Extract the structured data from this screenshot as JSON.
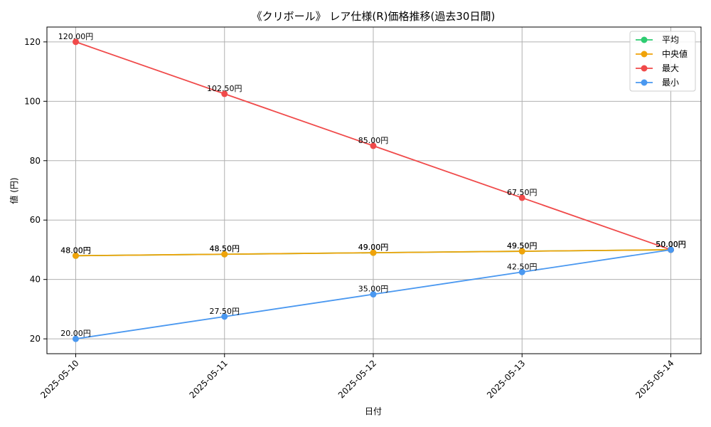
{
  "chart_data": {
    "type": "line",
    "title": "《クリボール》 レア仕様(R)価格推移(過去30日間)",
    "xlabel": "日付",
    "ylabel": "値 (円)",
    "categories": [
      "2025-05-10",
      "2025-05-11",
      "2025-05-12",
      "2025-05-13",
      "2025-05-14"
    ],
    "ylim": [
      15,
      125
    ],
    "yticks": [
      20,
      40,
      60,
      80,
      100,
      120
    ],
    "grid": true,
    "legend_position": "top-right",
    "series": [
      {
        "name": "平均",
        "color": "#2ecc71",
        "values": [
          48.0,
          48.5,
          49.0,
          49.5,
          50.0
        ],
        "labels": [
          "48.00円",
          "48.50円",
          "49.00円",
          "49.50円",
          "50.00円"
        ]
      },
      {
        "name": "中央値",
        "color": "#f0a30a",
        "values": [
          48.0,
          48.5,
          49.0,
          49.5,
          50.0
        ],
        "labels": [
          "48.00円",
          "48.50円",
          "49.00円",
          "49.50円",
          "50.00円"
        ]
      },
      {
        "name": "最大",
        "color": "#f04a4a",
        "values": [
          120.0,
          102.5,
          85.0,
          67.5,
          50.0
        ],
        "labels": [
          "120.00円",
          "102.50円",
          "85.00円",
          "67.50円",
          "50.00円"
        ]
      },
      {
        "name": "最小",
        "color": "#4a98f0",
        "values": [
          20.0,
          27.5,
          35.0,
          42.5,
          50.0
        ],
        "labels": [
          "20.00円",
          "27.50円",
          "35.00円",
          "42.50円",
          "50.00円"
        ]
      }
    ]
  }
}
